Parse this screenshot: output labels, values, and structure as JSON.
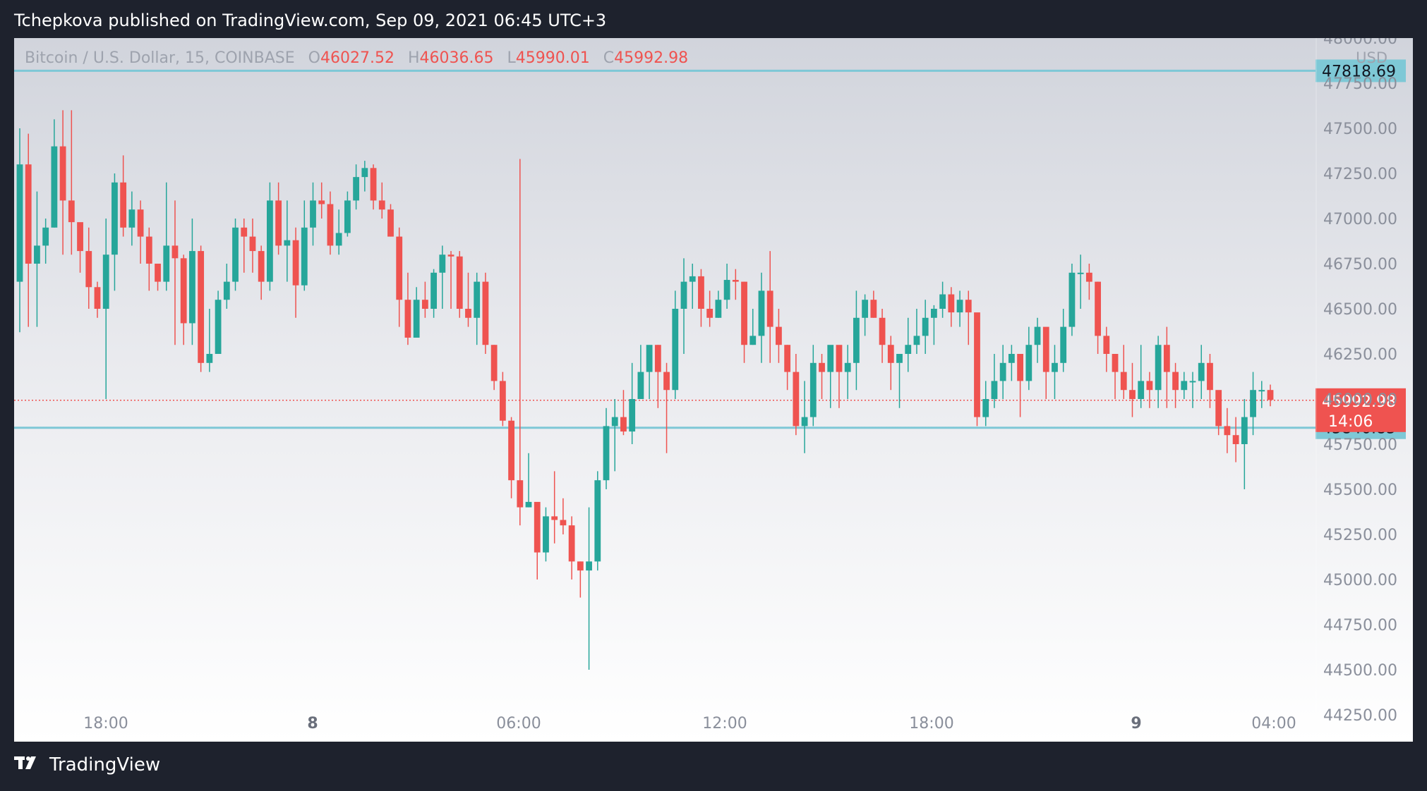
{
  "header": {
    "text": "Tchepkova published on TradingView.com, Sep 09, 2021 06:45 UTC+3"
  },
  "legend": {
    "symbol": "Bitcoin / U.S. Dollar, 15, COINBASE",
    "o_label": "O",
    "o": "46027.52",
    "h_label": "H",
    "h": "46036.65",
    "l_label": "L",
    "l": "45990.01",
    "c_label": "C",
    "c": "45992.98"
  },
  "currency": "USD",
  "footer": {
    "brand": "TradingView"
  },
  "colors": {
    "up": "#26a69a",
    "down": "#ef5350",
    "hline": "#7ec8d6",
    "last_price_bg": "#ef5350",
    "hline_label_bg": "#7ec8d6"
  },
  "chart_data": {
    "type": "candlestick",
    "title": "Bitcoin / U.S. Dollar, 15, COINBASE",
    "ylim": [
      44250,
      48000
    ],
    "x_ticks": [
      "18:00",
      "8",
      "06:00",
      "12:00",
      "18:00",
      "9",
      "04:00"
    ],
    "y_ticks": [
      "48000.00",
      "47750.00",
      "47500.00",
      "47250.00",
      "47000.00",
      "46750.00",
      "46500.00",
      "46250.00",
      "46000.00",
      "45750.00",
      "45500.00",
      "45250.00",
      "45000.00",
      "44750.00",
      "44500.00",
      "44250.00"
    ],
    "horizontal_lines": [
      47818.69,
      45840.85
    ],
    "horizontal_line_labels": [
      "47818.69",
      "45840.85"
    ],
    "last_price": "45992.98",
    "last_price_value": 45992.98,
    "countdown": "14:06",
    "candles": [
      [
        46650,
        47300,
        47500,
        46370
      ],
      [
        47300,
        46750,
        47470,
        46400
      ],
      [
        46750,
        46850,
        47150,
        46400
      ],
      [
        46850,
        46950,
        47000,
        46750
      ],
      [
        46950,
        47400,
        47550,
        46950
      ],
      [
        47400,
        47100,
        47600,
        46800
      ],
      [
        47100,
        46980,
        47600,
        46800
      ],
      [
        46980,
        46820,
        46870,
        46700
      ],
      [
        46820,
        46620,
        46950,
        46500
      ],
      [
        46620,
        46500,
        46650,
        46450
      ],
      [
        46500,
        46800,
        47000,
        46000
      ],
      [
        46800,
        47200,
        47250,
        46600
      ],
      [
        47200,
        46950,
        47350,
        46900
      ],
      [
        46950,
        47050,
        47150,
        46850
      ],
      [
        47050,
        46900,
        47100,
        46750
      ],
      [
        46900,
        46750,
        46950,
        46600
      ],
      [
        46750,
        46650,
        46750,
        46600
      ],
      [
        46650,
        46850,
        47200,
        46600
      ],
      [
        46850,
        46780,
        47100,
        46300
      ],
      [
        46780,
        46420,
        46800,
        46300
      ],
      [
        46420,
        46820,
        47000,
        46300
      ],
      [
        46820,
        46200,
        46850,
        46150
      ],
      [
        46200,
        46250,
        46500,
        46150
      ],
      [
        46250,
        46550,
        46600,
        46250
      ],
      [
        46550,
        46650,
        46750,
        46500
      ],
      [
        46650,
        46950,
        47000,
        46600
      ],
      [
        46950,
        46900,
        47000,
        46700
      ],
      [
        46900,
        46820,
        47000,
        46700
      ],
      [
        46820,
        46650,
        46850,
        46550
      ],
      [
        46650,
        47100,
        47200,
        46600
      ],
      [
        47100,
        46850,
        47200,
        46800
      ],
      [
        46850,
        46880,
        47100,
        46650
      ],
      [
        46880,
        46630,
        46950,
        46450
      ],
      [
        46630,
        46950,
        47100,
        46600
      ],
      [
        46950,
        47100,
        47200,
        46850
      ],
      [
        47100,
        47080,
        47200,
        47000
      ],
      [
        47080,
        46850,
        47150,
        46800
      ],
      [
        46850,
        46920,
        47050,
        46800
      ],
      [
        46920,
        47100,
        47150,
        46900
      ],
      [
        47100,
        47230,
        47300,
        47050
      ],
      [
        47230,
        47280,
        47320,
        47150
      ],
      [
        47280,
        47100,
        47300,
        47050
      ],
      [
        47100,
        47050,
        47200,
        47000
      ],
      [
        47050,
        46900,
        47080,
        46900
      ],
      [
        46900,
        46550,
        46950,
        46400
      ],
      [
        46550,
        46340,
        46700,
        46300
      ],
      [
        46340,
        46550,
        46620,
        46350
      ],
      [
        46550,
        46500,
        46650,
        46450
      ],
      [
        46500,
        46700,
        46720,
        46450
      ],
      [
        46700,
        46800,
        46850,
        46500
      ],
      [
        46800,
        46790,
        46820,
        46500
      ],
      [
        46790,
        46500,
        46820,
        46450
      ],
      [
        46500,
        46450,
        46700,
        46400
      ],
      [
        46450,
        46650,
        46700,
        46300
      ],
      [
        46650,
        46300,
        46700,
        46250
      ],
      [
        46300,
        46100,
        46300,
        46050
      ],
      [
        46100,
        45880,
        46150,
        45850
      ],
      [
        45880,
        45550,
        45900,
        45450
      ],
      [
        45550,
        45400,
        47330,
        45300
      ],
      [
        45400,
        45430,
        45700,
        45400
      ],
      [
        45430,
        45150,
        45350,
        45000
      ],
      [
        45150,
        45350,
        45400,
        45100
      ],
      [
        45350,
        45330,
        45600,
        45200
      ],
      [
        45330,
        45300,
        45450,
        45250
      ],
      [
        45300,
        45100,
        45350,
        45000
      ],
      [
        45100,
        45050,
        45100,
        44900
      ],
      [
        45050,
        45100,
        45400,
        44500
      ],
      [
        45100,
        45550,
        45600,
        45050
      ],
      [
        45550,
        45850,
        45950,
        45500
      ],
      [
        45850,
        45900,
        46000,
        45600
      ],
      [
        45900,
        45820,
        46050,
        45800
      ],
      [
        45820,
        46000,
        46200,
        45750
      ],
      [
        46000,
        46150,
        46300,
        46000
      ],
      [
        46150,
        46300,
        46280,
        46000
      ],
      [
        46300,
        46150,
        46300,
        45950
      ],
      [
        46150,
        46050,
        46200,
        45700
      ],
      [
        46050,
        46500,
        46600,
        46000
      ],
      [
        46500,
        46650,
        46780,
        46250
      ],
      [
        46650,
        46680,
        46750,
        46500
      ],
      [
        46680,
        46500,
        46720,
        46400
      ],
      [
        46500,
        46450,
        46600,
        46400
      ],
      [
        46450,
        46550,
        46600,
        46450
      ],
      [
        46550,
        46660,
        46750,
        46500
      ],
      [
        46660,
        46650,
        46720,
        46550
      ],
      [
        46650,
        46300,
        46650,
        46200
      ],
      [
        46300,
        46350,
        46500,
        46300
      ],
      [
        46350,
        46600,
        46700,
        46200
      ],
      [
        46600,
        46400,
        46820,
        46200
      ],
      [
        46400,
        46300,
        46500,
        46200
      ],
      [
        46300,
        46150,
        46300,
        46050
      ],
      [
        46150,
        45850,
        46250,
        45800
      ],
      [
        45850,
        45900,
        46100,
        45700
      ],
      [
        45900,
        46200,
        46300,
        45850
      ],
      [
        46200,
        46150,
        46250,
        46000
      ],
      [
        46150,
        46300,
        46250,
        45950
      ],
      [
        46300,
        46150,
        46250,
        45950
      ],
      [
        46150,
        46200,
        46300,
        46000
      ],
      [
        46200,
        46450,
        46600,
        46050
      ],
      [
        46450,
        46550,
        46580,
        46350
      ],
      [
        46550,
        46450,
        46600,
        46450
      ],
      [
        46450,
        46300,
        46500,
        46200
      ],
      [
        46300,
        46200,
        46350,
        46050
      ],
      [
        46200,
        46250,
        46200,
        45950
      ],
      [
        46250,
        46300,
        46450,
        46150
      ],
      [
        46300,
        46350,
        46500,
        46250
      ],
      [
        46350,
        46450,
        46550,
        46250
      ],
      [
        46450,
        46500,
        46520,
        46300
      ],
      [
        46500,
        46580,
        46650,
        46450
      ],
      [
        46580,
        46480,
        46620,
        46400
      ],
      [
        46480,
        46550,
        46600,
        46400
      ],
      [
        46550,
        46480,
        46600,
        46300
      ],
      [
        46480,
        45900,
        46450,
        45850
      ],
      [
        45900,
        46000,
        46100,
        45850
      ],
      [
        46000,
        46100,
        46250,
        45950
      ],
      [
        46100,
        46200,
        46300,
        46000
      ],
      [
        46200,
        46250,
        46300,
        46100
      ],
      [
        46250,
        46100,
        46200,
        45900
      ],
      [
        46100,
        46300,
        46400,
        46050
      ],
      [
        46300,
        46400,
        46450,
        46200
      ],
      [
        46400,
        46150,
        46250,
        46000
      ],
      [
        46150,
        46200,
        46300,
        46000
      ],
      [
        46200,
        46400,
        46500,
        46150
      ],
      [
        46400,
        46700,
        46750,
        46350
      ],
      [
        46700,
        46700,
        46800,
        46500
      ],
      [
        46700,
        46650,
        46750,
        46550
      ],
      [
        46650,
        46350,
        46650,
        46250
      ],
      [
        46350,
        46250,
        46400,
        46150
      ],
      [
        46250,
        46150,
        46250,
        46000
      ],
      [
        46150,
        46050,
        46300,
        46000
      ],
      [
        46050,
        46000,
        46200,
        45900
      ],
      [
        46000,
        46100,
        46300,
        45950
      ],
      [
        46100,
        46050,
        46150,
        45950
      ],
      [
        46050,
        46300,
        46350,
        45950
      ],
      [
        46300,
        46150,
        46400,
        45950
      ],
      [
        46150,
        46050,
        46200,
        45950
      ],
      [
        46050,
        46100,
        46150,
        46000
      ],
      [
        46100,
        46100,
        46150,
        45950
      ],
      [
        46100,
        46200,
        46300,
        46000
      ],
      [
        46200,
        46050,
        46250,
        45950
      ],
      [
        46050,
        45850,
        46000,
        45800
      ],
      [
        45850,
        45800,
        45950,
        45700
      ],
      [
        45800,
        45750,
        45900,
        45650
      ],
      [
        45750,
        45900,
        46000,
        45500
      ],
      [
        45900,
        46050,
        46150,
        45800
      ],
      [
        46050,
        46050,
        46100,
        45950
      ],
      [
        46050,
        45995,
        46080,
        45960
      ]
    ]
  }
}
